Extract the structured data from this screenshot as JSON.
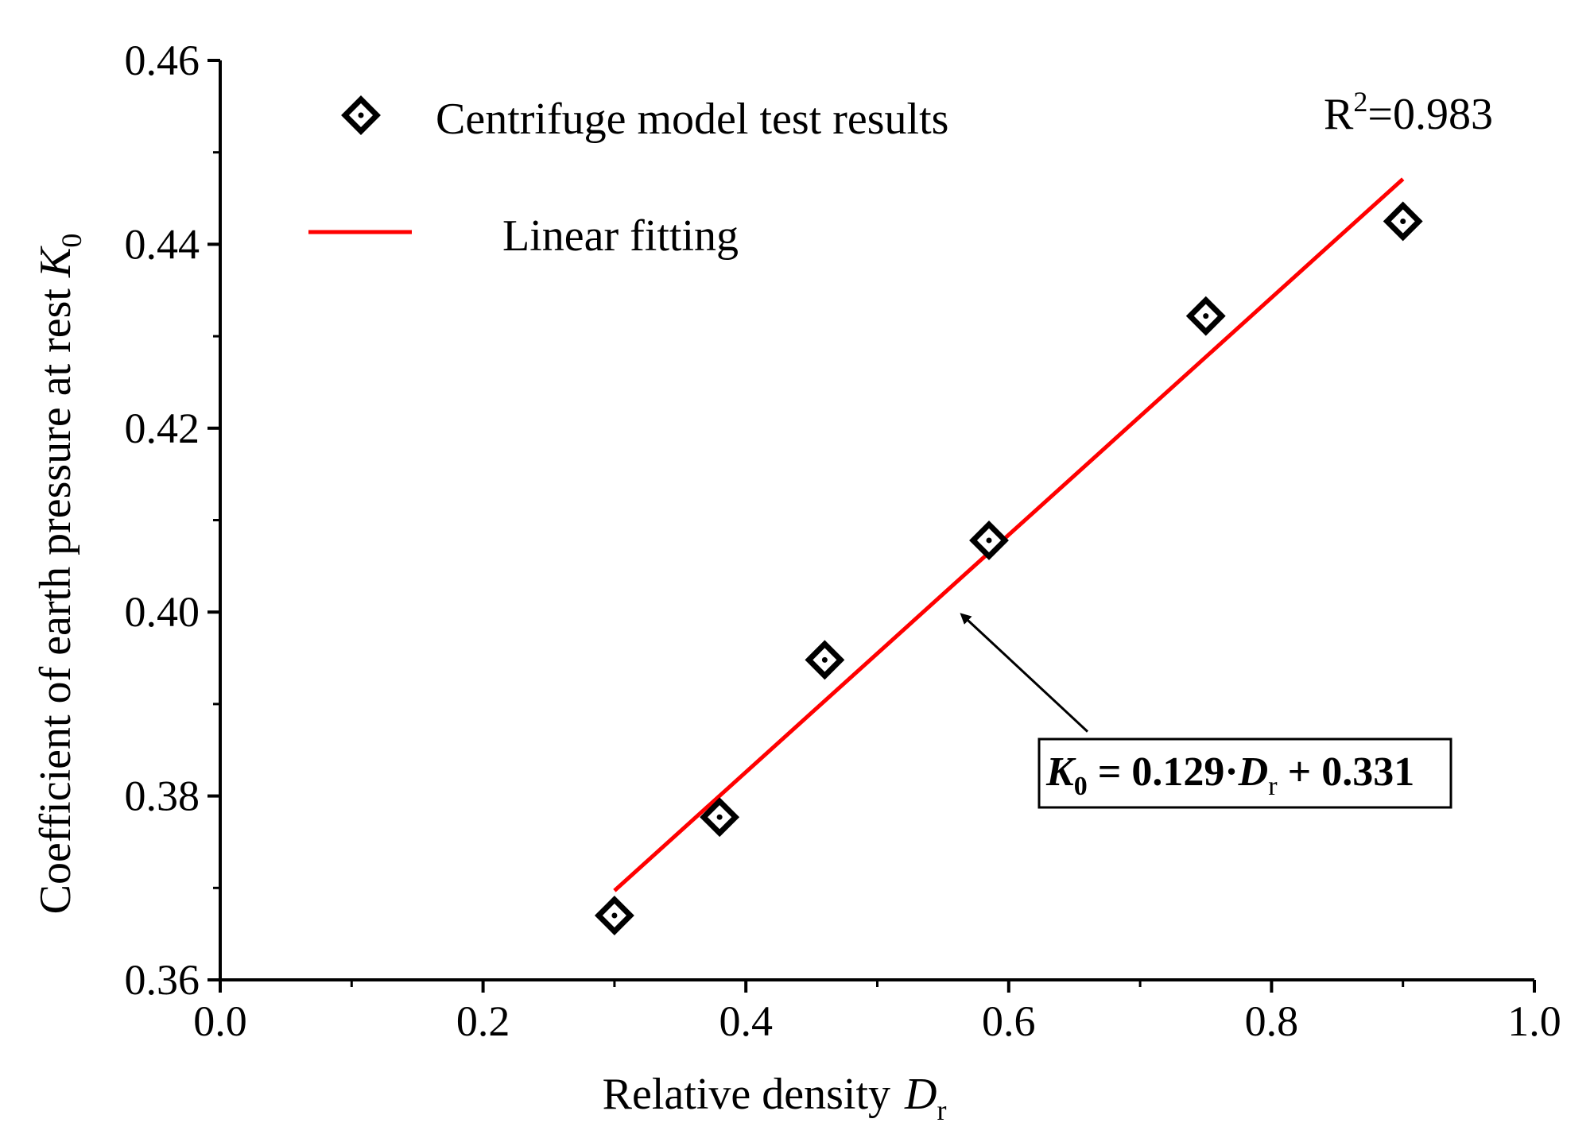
{
  "chart_data": {
    "type": "scatter",
    "xlabel": "Relative density",
    "xlabel_symbol": "D",
    "xlabel_symbol_sub": "r",
    "ylabel": "Coefficient of earth pressure at rest",
    "ylabel_symbol": "K",
    "ylabel_symbol_sub": "0",
    "xlim": [
      0.0,
      1.0
    ],
    "ylim": [
      0.36,
      0.46
    ],
    "x_ticks": [
      0.0,
      0.2,
      0.4,
      0.6,
      0.8,
      1.0
    ],
    "x_tick_labels": [
      "0.0",
      "0.2",
      "0.4",
      "0.6",
      "0.8",
      "1.0"
    ],
    "y_ticks": [
      0.36,
      0.38,
      0.4,
      0.42,
      0.44,
      0.46
    ],
    "y_tick_labels": [
      "0.36",
      "0.38",
      "0.40",
      "0.42",
      "0.44",
      "0.46"
    ],
    "series": [
      {
        "name": "Centrifuge model test results",
        "kind": "scatter",
        "marker": "diamond",
        "color": "#000000",
        "x": [
          0.3,
          0.38,
          0.46,
          0.585,
          0.75,
          0.9
        ],
        "y": [
          0.367,
          0.3777,
          0.3948,
          0.4078,
          0.4322,
          0.4425
        ]
      },
      {
        "name": "Linear fitting",
        "kind": "line",
        "color": "#ff0000",
        "slope": 0.129,
        "intercept": 0.331,
        "x_range": [
          0.3,
          0.9
        ]
      }
    ],
    "annotations": {
      "r2_prefix": "R",
      "r2_sup": "2",
      "r2_value": "=0.983",
      "equation_parts": [
        "K",
        "0",
        " = 0.129·",
        "D",
        "r",
        " + 0.331"
      ],
      "arrow_target": [
        0.566,
        0.3995
      ],
      "arrow_source": [
        0.66,
        0.387
      ]
    },
    "legend_position": "top-left"
  }
}
